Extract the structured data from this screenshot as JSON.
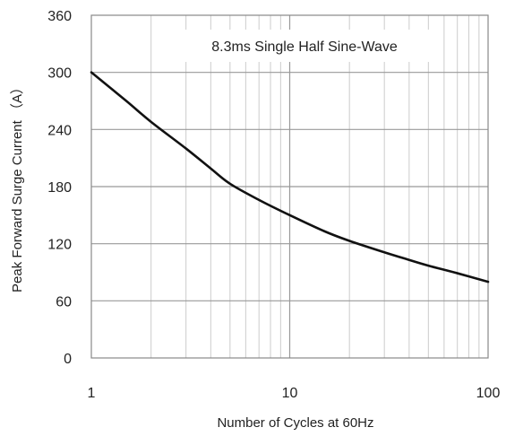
{
  "chart_data": {
    "type": "line",
    "title": "",
    "annotation": "8.3ms Single Half Sine-Wave",
    "xlabel": "Number of Cycles at 60Hz",
    "ylabel": "Peak Forward Surge Current （A）",
    "x_scale": "log",
    "xlim": [
      1,
      100
    ],
    "ylim": [
      0,
      360
    ],
    "x_ticks": [
      1,
      10,
      100
    ],
    "x_tick_labels": [
      "1",
      "10",
      "100"
    ],
    "y_ticks": [
      0,
      60,
      120,
      180,
      240,
      300,
      360
    ],
    "y_tick_labels": [
      "0",
      "60",
      "120",
      "180",
      "240",
      "300",
      "360"
    ],
    "grid": true,
    "legend": "none",
    "series": [
      {
        "color": "#111111",
        "x": [
          1,
          1.5,
          2,
          3,
          4,
          5,
          7,
          10,
          15,
          20,
          30,
          40,
          50,
          70,
          100
        ],
        "y": [
          300,
          270,
          248,
          220,
          199,
          183,
          166,
          150,
          133,
          123,
          111,
          103,
          97,
          89,
          80
        ]
      }
    ]
  }
}
